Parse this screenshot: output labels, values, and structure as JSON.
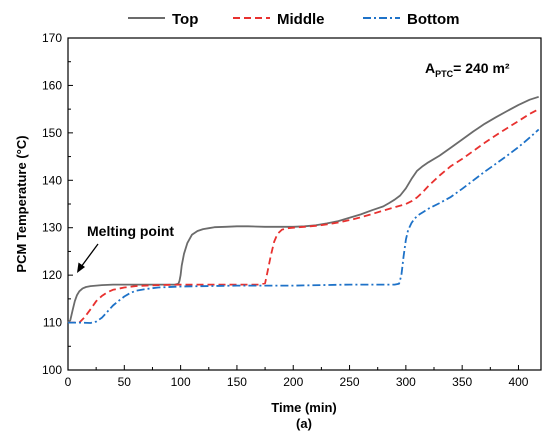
{
  "chart_data": {
    "type": "line",
    "xlabel": "Time (min)",
    "ylabel": "PCM Temperature (°C)",
    "caption": "(a)",
    "xlim": [
      0,
      420
    ],
    "ylim": [
      100,
      170
    ],
    "xticks": [
      0,
      50,
      100,
      150,
      200,
      250,
      300,
      350,
      400
    ],
    "yticks": [
      100,
      110,
      120,
      130,
      140,
      150,
      160,
      170
    ],
    "grid": false,
    "legend_position": "top",
    "annotations": {
      "area_main": "A",
      "area_sub": "PTC",
      "area_value": "= 240 m²",
      "melting_point": "Melting point"
    },
    "series": [
      {
        "name": "Top",
        "color": "#6b6b6b",
        "dash": "solid",
        "x": [
          0,
          2,
          4,
          6,
          8,
          10,
          13,
          16,
          20,
          25,
          30,
          40,
          60,
          80,
          95,
          98,
          99,
          100,
          101,
          103,
          106,
          110,
          115,
          120,
          125,
          130,
          140,
          150,
          160,
          175,
          190,
          200,
          210,
          220,
          230,
          240,
          250,
          260,
          270,
          280,
          285,
          290,
          295,
          300,
          305,
          310,
          315,
          320,
          330,
          340,
          350,
          360,
          370,
          380,
          390,
          400,
          410,
          418
        ],
        "y": [
          110,
          110.5,
          112.5,
          114.5,
          115.8,
          116.6,
          117.2,
          117.5,
          117.7,
          117.8,
          117.9,
          118,
          118,
          118,
          118,
          118.2,
          118.8,
          120,
          122,
          124.5,
          126.8,
          128.5,
          129.3,
          129.7,
          129.9,
          130.1,
          130.2,
          130.3,
          130.3,
          130.2,
          130.2,
          130.2,
          130.3,
          130.5,
          130.9,
          131.4,
          132.1,
          132.8,
          133.7,
          134.5,
          135.2,
          135.9,
          136.8,
          138.3,
          140.3,
          142,
          143,
          143.8,
          145.2,
          146.9,
          148.6,
          150.3,
          151.9,
          153.3,
          154.6,
          155.9,
          157,
          157.6
        ]
      },
      {
        "name": "Middle",
        "color": "#e8312f",
        "dash": "dashed",
        "x": [
          0,
          10,
          15,
          20,
          25,
          30,
          35,
          40,
          50,
          60,
          80,
          100,
          120,
          150,
          170,
          175,
          177,
          180,
          183,
          186,
          190,
          195,
          200,
          210,
          220,
          230,
          240,
          250,
          260,
          270,
          280,
          290,
          300,
          305,
          310,
          315,
          320,
          330,
          340,
          350,
          360,
          370,
          380,
          390,
          400,
          410,
          418
        ],
        "y": [
          110,
          110,
          111.2,
          112.8,
          114.5,
          115.6,
          116.4,
          116.9,
          117.4,
          117.7,
          117.9,
          118,
          118,
          118,
          118,
          118.3,
          120.5,
          124,
          127,
          128.7,
          129.6,
          129.9,
          130,
          130.2,
          130.4,
          130.7,
          131.1,
          131.6,
          132.2,
          132.9,
          133.6,
          134.3,
          135,
          135.6,
          136.4,
          137.5,
          138.8,
          141,
          143,
          144.5,
          146.2,
          147.9,
          149.5,
          151,
          152.5,
          154,
          155
        ]
      },
      {
        "name": "Bottom",
        "color": "#1e72c8",
        "dash": "dashdot",
        "x": [
          0,
          10,
          20,
          25,
          30,
          35,
          40,
          45,
          50,
          55,
          60,
          70,
          80,
          100,
          150,
          200,
          250,
          270,
          290,
          294,
          296,
          298,
          300,
          302,
          305,
          308,
          312,
          316,
          320,
          330,
          340,
          350,
          360,
          370,
          380,
          390,
          400,
          410,
          418
        ],
        "y": [
          110,
          110,
          109.9,
          110.2,
          111,
          112.3,
          113.6,
          114.6,
          115.5,
          116.2,
          116.7,
          117.1,
          117.4,
          117.6,
          117.8,
          117.8,
          118,
          118,
          118,
          118.2,
          120,
          124,
          127.5,
          129.5,
          131,
          132,
          132.8,
          133.4,
          134,
          135.2,
          136.5,
          138.2,
          140,
          141.8,
          143.5,
          145.2,
          147,
          149,
          150.7
        ]
      }
    ]
  }
}
